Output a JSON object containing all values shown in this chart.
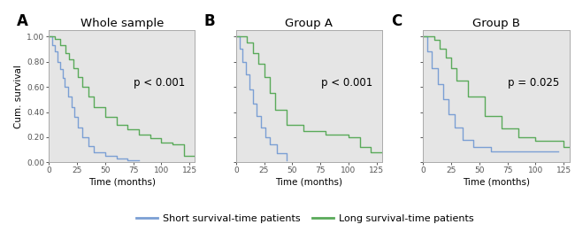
{
  "panels": [
    {
      "label": "A",
      "title": "Whole sample",
      "pvalue": "p < 0.001",
      "short_x": [
        0,
        3,
        5,
        8,
        10,
        12,
        14,
        17,
        20,
        23,
        26,
        30,
        35,
        40,
        50,
        60,
        70,
        80
      ],
      "short_y": [
        1.0,
        0.93,
        0.88,
        0.8,
        0.74,
        0.67,
        0.6,
        0.52,
        0.44,
        0.36,
        0.28,
        0.2,
        0.13,
        0.08,
        0.05,
        0.03,
        0.02,
        0.02
      ],
      "long_x": [
        0,
        5,
        10,
        15,
        18,
        22,
        26,
        30,
        35,
        40,
        50,
        60,
        70,
        80,
        90,
        100,
        110,
        120,
        130
      ],
      "long_y": [
        1.0,
        0.98,
        0.93,
        0.87,
        0.82,
        0.75,
        0.68,
        0.6,
        0.52,
        0.44,
        0.36,
        0.3,
        0.26,
        0.22,
        0.19,
        0.16,
        0.14,
        0.05,
        0.05
      ]
    },
    {
      "label": "B",
      "title": "Group A",
      "pvalue": "p < 0.001",
      "short_x": [
        0,
        3,
        6,
        9,
        12,
        15,
        18,
        22,
        26,
        30,
        36,
        45
      ],
      "short_y": [
        1.0,
        0.9,
        0.8,
        0.7,
        0.58,
        0.47,
        0.37,
        0.28,
        0.2,
        0.14,
        0.07,
        0.02
      ],
      "long_x": [
        0,
        5,
        10,
        15,
        20,
        25,
        30,
        35,
        45,
        60,
        80,
        100,
        110,
        120,
        130
      ],
      "long_y": [
        1.0,
        1.0,
        0.95,
        0.87,
        0.78,
        0.68,
        0.55,
        0.42,
        0.3,
        0.25,
        0.22,
        0.2,
        0.12,
        0.08,
        0.08
      ]
    },
    {
      "label": "C",
      "title": "Group B",
      "pvalue": "p = 0.025",
      "short_x": [
        0,
        4,
        8,
        13,
        18,
        23,
        28,
        35,
        45,
        60,
        80,
        100,
        120
      ],
      "short_y": [
        1.0,
        0.88,
        0.75,
        0.62,
        0.5,
        0.38,
        0.28,
        0.18,
        0.12,
        0.09,
        0.09,
        0.09,
        0.09
      ],
      "long_x": [
        0,
        5,
        10,
        15,
        20,
        25,
        30,
        40,
        55,
        70,
        85,
        100,
        110,
        125,
        130
      ],
      "long_y": [
        1.0,
        1.0,
        0.97,
        0.9,
        0.83,
        0.75,
        0.65,
        0.52,
        0.37,
        0.27,
        0.2,
        0.17,
        0.17,
        0.12,
        0.12
      ]
    }
  ],
  "xlim": [
    0,
    130
  ],
  "ylim": [
    0.0,
    1.05
  ],
  "xticks": [
    0,
    25,
    50,
    75,
    100,
    125
  ],
  "yticks": [
    0.0,
    0.2,
    0.4,
    0.6,
    0.8,
    1.0
  ],
  "ytick_labels": [
    "0.00",
    "0.20",
    "0.40",
    "0.60",
    "0.80",
    "1.00"
  ],
  "xlabel": "Time (months)",
  "ylabel": "Cum. survival",
  "short_color": "#7b9fd4",
  "long_color": "#5aaa5a",
  "bg_color": "#e5e5e5",
  "fig_bg": "#ffffff",
  "legend_short": "Short survival-time patients",
  "legend_long": "Long survival-time patients",
  "pvalue_fontsize": 8.5,
  "label_fontsize": 12,
  "title_fontsize": 9.5,
  "tick_fontsize": 6.5,
  "axis_label_fontsize": 7.5
}
